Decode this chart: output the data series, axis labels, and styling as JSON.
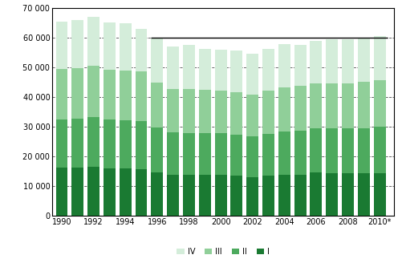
{
  "years": [
    1990,
    1991,
    1992,
    1993,
    1994,
    1995,
    1996,
    1997,
    1998,
    1999,
    2000,
    2001,
    2002,
    2003,
    2004,
    2005,
    2006,
    2007,
    2008,
    2009,
    2010
  ],
  "Q1": [
    16200,
    16100,
    16400,
    16000,
    15900,
    15600,
    14700,
    13700,
    13700,
    13700,
    13700,
    13500,
    12900,
    13500,
    13700,
    13800,
    14500,
    14400,
    14300,
    14200,
    14400
  ],
  "Q2": [
    16200,
    16600,
    16700,
    16300,
    16200,
    16300,
    15000,
    14300,
    14200,
    14100,
    14100,
    13900,
    13900,
    14100,
    14600,
    14900,
    15000,
    15000,
    15000,
    15200,
    15500
  ],
  "Q3": [
    16900,
    17000,
    17500,
    16900,
    16800,
    16600,
    15200,
    14800,
    14900,
    14600,
    14400,
    14300,
    14100,
    14600,
    15000,
    15000,
    15100,
    15200,
    15200,
    15600,
    15800
  ],
  "Q4": [
    16000,
    16200,
    16500,
    15900,
    15900,
    14500,
    14700,
    14200,
    14600,
    13700,
    13800,
    13900,
    13700,
    13900,
    14500,
    13900,
    14400,
    14700,
    14800,
    15000,
    14900
  ],
  "colors": {
    "Q1": "#1a7a32",
    "Q2": "#4daa5e",
    "Q3": "#90cf99",
    "Q4": "#d4edda"
  },
  "ylim": [
    0,
    70000
  ],
  "yticks": [
    0,
    10000,
    20000,
    30000,
    40000,
    50000,
    60000,
    70000
  ],
  "ytick_labels": [
    "0",
    "10 000",
    "20 000",
    "30 000",
    "40 000",
    "50 000",
    "60 000",
    "70 000"
  ],
  "xtick_labels": [
    "1990",
    "1992",
    "1994",
    "1996",
    "1998",
    "2000",
    "2002",
    "2004",
    "2006",
    "2008",
    "2010*"
  ],
  "xtick_positions": [
    1990,
    1992,
    1994,
    1996,
    1998,
    2000,
    2002,
    2004,
    2006,
    2008,
    2010
  ],
  "hline_y": 60000,
  "hline_xstart": 1995.6,
  "hline_xend": 2010.5,
  "legend_labels": [
    "IV",
    "III",
    "II",
    "I"
  ],
  "legend_colors": [
    "#d4edda",
    "#90cf99",
    "#4daa5e",
    "#1a7a32"
  ],
  "background_color": "#ffffff",
  "bar_width": 0.75,
  "xlim_left": 1989.4,
  "xlim_right": 2010.9
}
